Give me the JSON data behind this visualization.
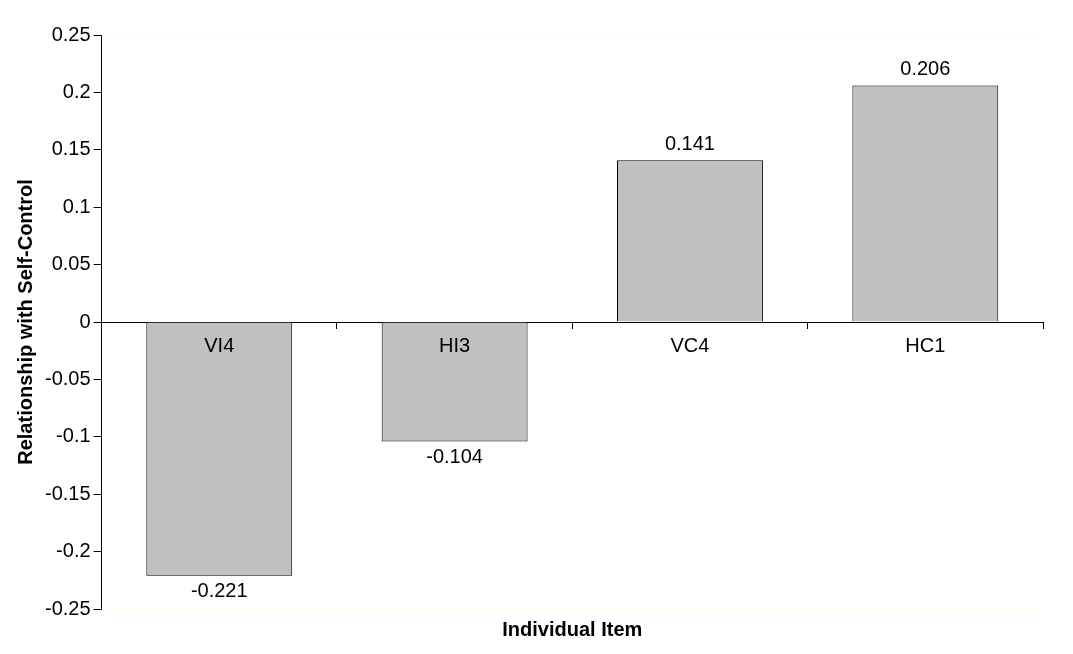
{
  "chart_data": {
    "type": "bar",
    "xlabel": "Individual Item",
    "ylabel": "Relationship with Self-Control",
    "categories": [
      "VI4",
      "HI3",
      "VC4",
      "HC1"
    ],
    "values": [
      -0.221,
      -0.104,
      0.141,
      0.206
    ],
    "color": "#c0c0c0",
    "ylim": [
      -0.25,
      0.25
    ],
    "yticks": [
      -0.25,
      -0.2,
      -0.15,
      -0.1,
      -0.05,
      0,
      0.05,
      0.1,
      0.15,
      0.2,
      0.25
    ],
    "grid": false,
    "legend": false,
    "data_labels": true
  }
}
